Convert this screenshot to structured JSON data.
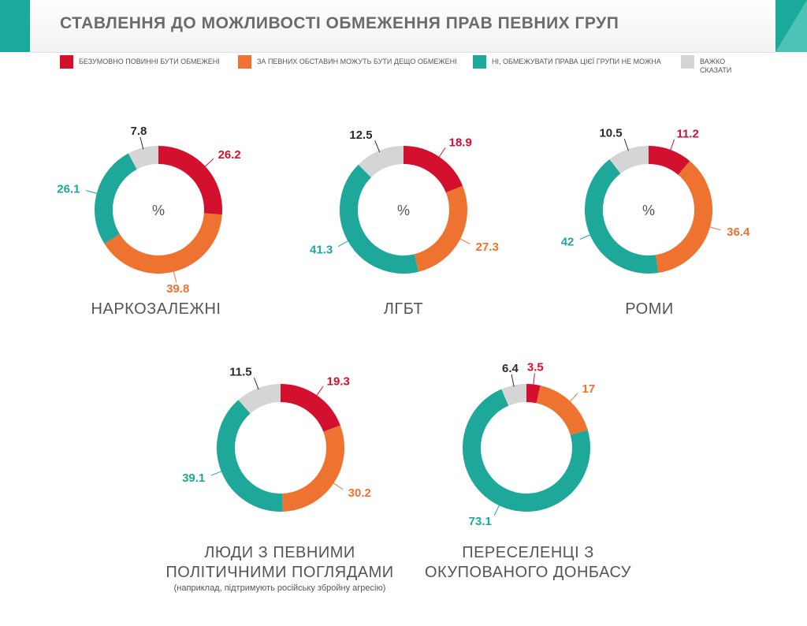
{
  "title": "СТАВЛЕННЯ ДО МОЖЛИВОСТІ ОБМЕЖЕННЯ ПРАВ ПЕВНИХ ГРУП",
  "legend": [
    {
      "label": "БЕЗУМОВНО ПОВИННІ БУТИ ОБМЕЖЕНІ",
      "color": "#d4102f"
    },
    {
      "label": "ЗА ПЕВНИХ ОБСТАВИН МОЖУТЬ БУТИ ДЕЩО ОБМЕЖЕНІ",
      "color": "#ee7330"
    },
    {
      "label": "НІ, ОБМЕЖУВАТИ ПРАВА ЦІЄЇ ГРУПИ НЕ МОЖНА",
      "color": "#1ea89a"
    },
    {
      "label": "ВАЖКО СКАЗАТИ",
      "color": "#d5d5d5"
    }
  ],
  "center_symbol": "%",
  "chart_data": [
    {
      "type": "pie",
      "title": "НАРКОЗАЛЕЖНІ",
      "subtitle": "",
      "categories": [
        "БЕЗУМОВНО ПОВИННІ БУТИ ОБМЕЖЕНІ",
        "ЗА ПЕВНИХ ОБСТАВИН МОЖУТЬ БУТИ ДЕЩО ОБМЕЖЕНІ",
        "НІ, ОБМЕЖУВАТИ ПРАВА ЦІЄЇ ГРУПИ НЕ МОЖНА",
        "ВАЖКО СКАЗАТИ"
      ],
      "values": [
        26.2,
        39.8,
        26.1,
        7.8
      ],
      "labels": [
        "26.2",
        "39.8",
        "26.1",
        "7.8"
      ],
      "show_percent": true
    },
    {
      "type": "pie",
      "title": "ЛГБТ",
      "subtitle": "",
      "categories": [
        "БЕЗУМОВНО ПОВИННІ БУТИ ОБМЕЖЕНІ",
        "ЗА ПЕВНИХ ОБСТАВИН МОЖУТЬ БУТИ ДЕЩО ОБМЕЖЕНІ",
        "НІ, ОБМЕЖУВАТИ ПРАВА ЦІЄЇ ГРУПИ НЕ МОЖНА",
        "ВАЖКО СКАЗАТИ"
      ],
      "values": [
        18.9,
        27.3,
        41.3,
        12.5
      ],
      "labels": [
        "18.9",
        "27.3",
        "41.3",
        "12.5"
      ],
      "show_percent": true
    },
    {
      "type": "pie",
      "title": "РОМИ",
      "subtitle": "",
      "categories": [
        "БЕЗУМОВНО ПОВИННІ БУТИ ОБМЕЖЕНІ",
        "ЗА ПЕВНИХ ОБСТАВИН МОЖУТЬ БУТИ ДЕЩО ОБМЕЖЕНІ",
        "НІ, ОБМЕЖУВАТИ ПРАВА ЦІЄЇ ГРУПИ НЕ МОЖНА",
        "ВАЖКО СКАЗАТИ"
      ],
      "values": [
        11.2,
        36.4,
        42,
        10.5
      ],
      "labels": [
        "11.2",
        "36.4",
        "42",
        "10.5"
      ],
      "show_percent": true
    },
    {
      "type": "pie",
      "title": "ЛЮДИ  З  ПЕВНИМИ ПОЛІТИЧНИМИ  ПОГЛЯДАМИ",
      "title_lines": [
        "ЛЮДИ   З   ПЕВНИМИ",
        "ПОЛІТИЧНИМИ   ПОГЛЯДАМИ"
      ],
      "subtitle": "(наприклад,  підтримують   російську   збройну   агресію)",
      "categories": [
        "БЕЗУМОВНО ПОВИННІ БУТИ ОБМЕЖЕНІ",
        "ЗА ПЕВНИХ ОБСТАВИН МОЖУТЬ БУТИ ДЕЩО ОБМЕЖЕНІ",
        "НІ, ОБМЕЖУВАТИ ПРАВА ЦІЄЇ ГРУПИ НЕ МОЖНА",
        "ВАЖКО СКАЗАТИ"
      ],
      "values": [
        19.3,
        30.2,
        39.1,
        11.5
      ],
      "labels": [
        "19.3",
        "30.2",
        "39.1",
        "11.5"
      ],
      "show_percent": false
    },
    {
      "type": "pie",
      "title": "ПЕРЕСЕЛЕНЦІ З ОКУПОВАНОГО ДОНБАСУ",
      "title_lines": [
        "ПЕРЕСЕЛЕНЦІ З",
        "ОКУПОВАНОГО ДОНБАСУ"
      ],
      "subtitle": "",
      "categories": [
        "БЕЗУМОВНО ПОВИННІ БУТИ ОБМЕЖЕНІ",
        "ЗА ПЕВНИХ ОБСТАВИН МОЖУТЬ БУТИ ДЕЩО ОБМЕЖЕНІ",
        "НІ, ОБМЕЖУВАТИ ПРАВА ЦІЄЇ ГРУПИ НЕ МОЖНА",
        "ВАЖКО СКАЗАТИ"
      ],
      "values": [
        3.5,
        17,
        73.1,
        6.4
      ],
      "labels": [
        "3.5",
        "17",
        "73.1",
        "6.4"
      ],
      "show_percent": false
    }
  ]
}
